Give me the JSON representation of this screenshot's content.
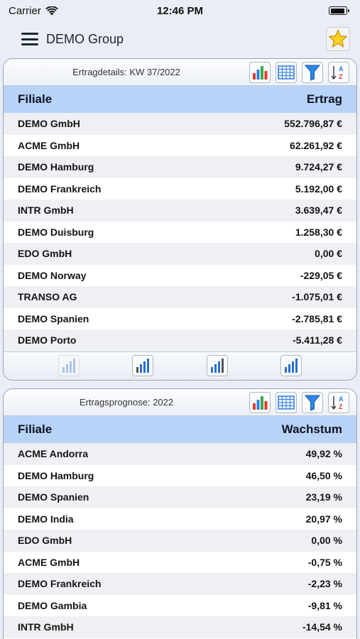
{
  "status": {
    "carrier": "Carrier",
    "time": "12:46 PM"
  },
  "nav": {
    "title": "DEMO Group"
  },
  "panel1": {
    "title": "Ertragdetails: KW 37/2022",
    "col_left": "Filiale",
    "col_right": "Ertrag",
    "rows": [
      {
        "name": "DEMO GmbH",
        "value": "552.796,87 €"
      },
      {
        "name": "ACME GmbH",
        "value": "62.261,92 €"
      },
      {
        "name": "DEMO Hamburg",
        "value": "9.724,27 €"
      },
      {
        "name": "DEMO Frankreich",
        "value": "5.192,00 €"
      },
      {
        "name": "INTR GmbH",
        "value": "3.639,47 €"
      },
      {
        "name": "DEMO Duisburg",
        "value": "1.258,30 €"
      },
      {
        "name": "EDO GmbH",
        "value": "0,00 €"
      },
      {
        "name": "DEMO Norway",
        "value": "-229,05 €"
      },
      {
        "name": "TRANSO AG",
        "value": "-1.075,01 €"
      },
      {
        "name": "DEMO Spanien",
        "value": "-2.785,81 €"
      },
      {
        "name": "DEMO Porto",
        "value": "-5.411,28 €"
      }
    ]
  },
  "panel2": {
    "title": "Ertragsprognose: 2022",
    "col_left": "Filiale",
    "col_right": "Wachstum",
    "rows": [
      {
        "name": "ACME Andorra",
        "value": "49,92 %"
      },
      {
        "name": "DEMO Hamburg",
        "value": "46,50 %"
      },
      {
        "name": "DEMO Spanien",
        "value": "23,19 %"
      },
      {
        "name": "DEMO India",
        "value": "20,97 %"
      },
      {
        "name": "EDO GmbH",
        "value": "0,00 %"
      },
      {
        "name": "ACME GmbH",
        "value": "-0,75 %"
      },
      {
        "name": "DEMO Frankreich",
        "value": "-2,23 %"
      },
      {
        "name": "DEMO Gambia",
        "value": "-9,81 %"
      },
      {
        "name": "INTR GmbH",
        "value": "-14,54 %"
      }
    ]
  },
  "icons": {
    "chart": "bar-chart-icon",
    "table": "table-grid-icon",
    "filter": "filter-funnel-icon",
    "sort": "sort-az-icon",
    "favorite": "star-icon"
  },
  "colors": {
    "header_blue": "#b8d3f7",
    "accent_blue": "#2a6fd0",
    "star_yellow": "#f7d21e"
  }
}
